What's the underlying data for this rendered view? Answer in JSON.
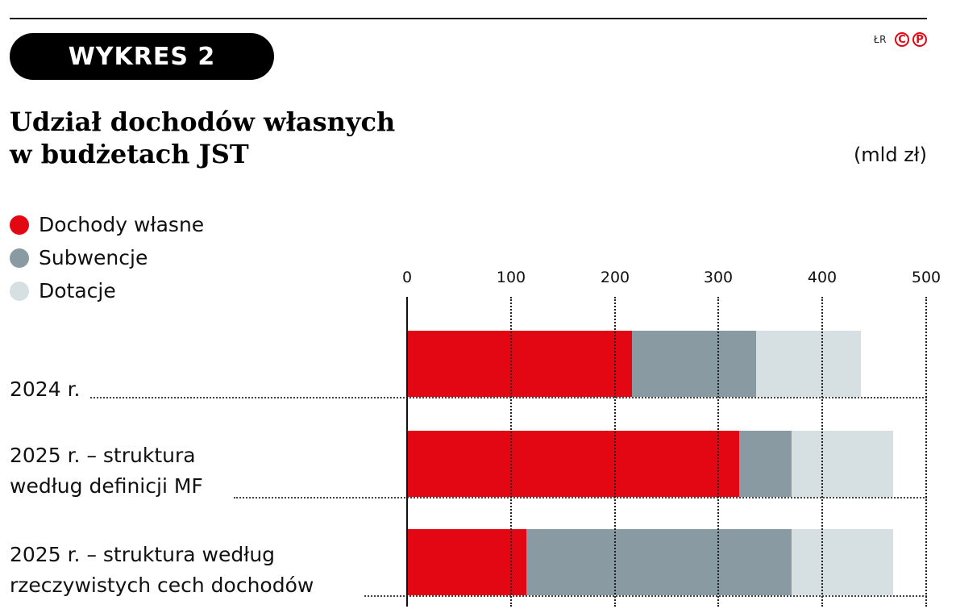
{
  "header": {
    "badge_label": "WYKRES 2",
    "author": "ŁR",
    "copyright_icons": [
      "C",
      "P"
    ],
    "title_line1": "Udział dochodów własnych",
    "title_line2": "w budżetach JST",
    "unit": "(mld zł)"
  },
  "colors": {
    "dochody_wlasne": "#e30613",
    "subwencje": "#8a9aa2",
    "dotacje": "#d6dfe2",
    "badge_bg": "#000000",
    "credit_red": "#e30613"
  },
  "legend": [
    {
      "label": "Dochody własne",
      "color": "#e30613"
    },
    {
      "label": "Subwencje",
      "color": "#8a9aa2"
    },
    {
      "label": "Dotacje",
      "color": "#d6dfe2"
    }
  ],
  "axis": {
    "ticks": [
      "0",
      "100",
      "200",
      "300",
      "400",
      "500"
    ]
  },
  "categories": [
    {
      "line1": "2024 r.",
      "line2": ""
    },
    {
      "line1": "2025 r. – struktura",
      "line2": "według definicji MF"
    },
    {
      "line1": "2025 r. – struktura według",
      "line2": "rzeczywistych cech dochodów"
    }
  ],
  "chart_data": {
    "type": "bar",
    "orientation": "horizontal",
    "stacked": true,
    "title": "Udział dochodów własnych w budżetach JST",
    "unit": "mld zł",
    "xlabel": "",
    "ylabel": "",
    "xlim": [
      0,
      500
    ],
    "xticks": [
      0,
      100,
      200,
      300,
      400,
      500
    ],
    "grid": "vertical dotted",
    "legend_position": "top-left",
    "categories": [
      "2024 r.",
      "2025 r. – struktura według definicji MF",
      "2025 r. – struktura według rzeczywistych cech dochodów"
    ],
    "series": [
      {
        "name": "Dochody własne",
        "color": "#e30613",
        "values": [
          217,
          320,
          115
        ]
      },
      {
        "name": "Subwencje",
        "color": "#8a9aa2",
        "values": [
          119,
          50,
          255
        ]
      },
      {
        "name": "Dotacje",
        "color": "#d6dfe2",
        "values": [
          101,
          98,
          98
        ]
      }
    ]
  }
}
